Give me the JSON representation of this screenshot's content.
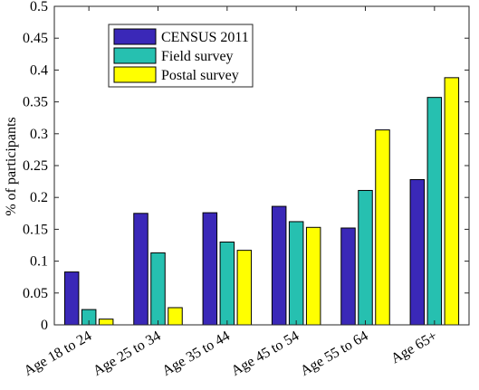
{
  "chart_data": {
    "type": "bar",
    "title": "",
    "xlabel": "",
    "ylabel": "% of participants",
    "ylim": [
      0,
      0.5
    ],
    "yticks": [
      "0",
      "0.05",
      "0.1",
      "0.15",
      "0.2",
      "0.25",
      "0.3",
      "0.35",
      "0.4",
      "0.45",
      "0.5"
    ],
    "categories": [
      "Age 18 to 24",
      "Age 25 to 34",
      "Age 35 to 44",
      "Age 45 to 54",
      "Age 55 to 64",
      "Age 65+"
    ],
    "series": [
      {
        "name": "CENSUS 2011",
        "color": "#3a28b8",
        "values": [
          0.083,
          0.175,
          0.176,
          0.186,
          0.152,
          0.228
        ]
      },
      {
        "name": "Field survey",
        "color": "#26c0b0",
        "values": [
          0.024,
          0.113,
          0.13,
          0.162,
          0.211,
          0.357
        ]
      },
      {
        "name": "Postal survey",
        "color": "#ffff00",
        "values": [
          0.009,
          0.027,
          0.117,
          0.153,
          0.306,
          0.388
        ]
      }
    ],
    "legend_position": "top-left",
    "grid": false
  }
}
